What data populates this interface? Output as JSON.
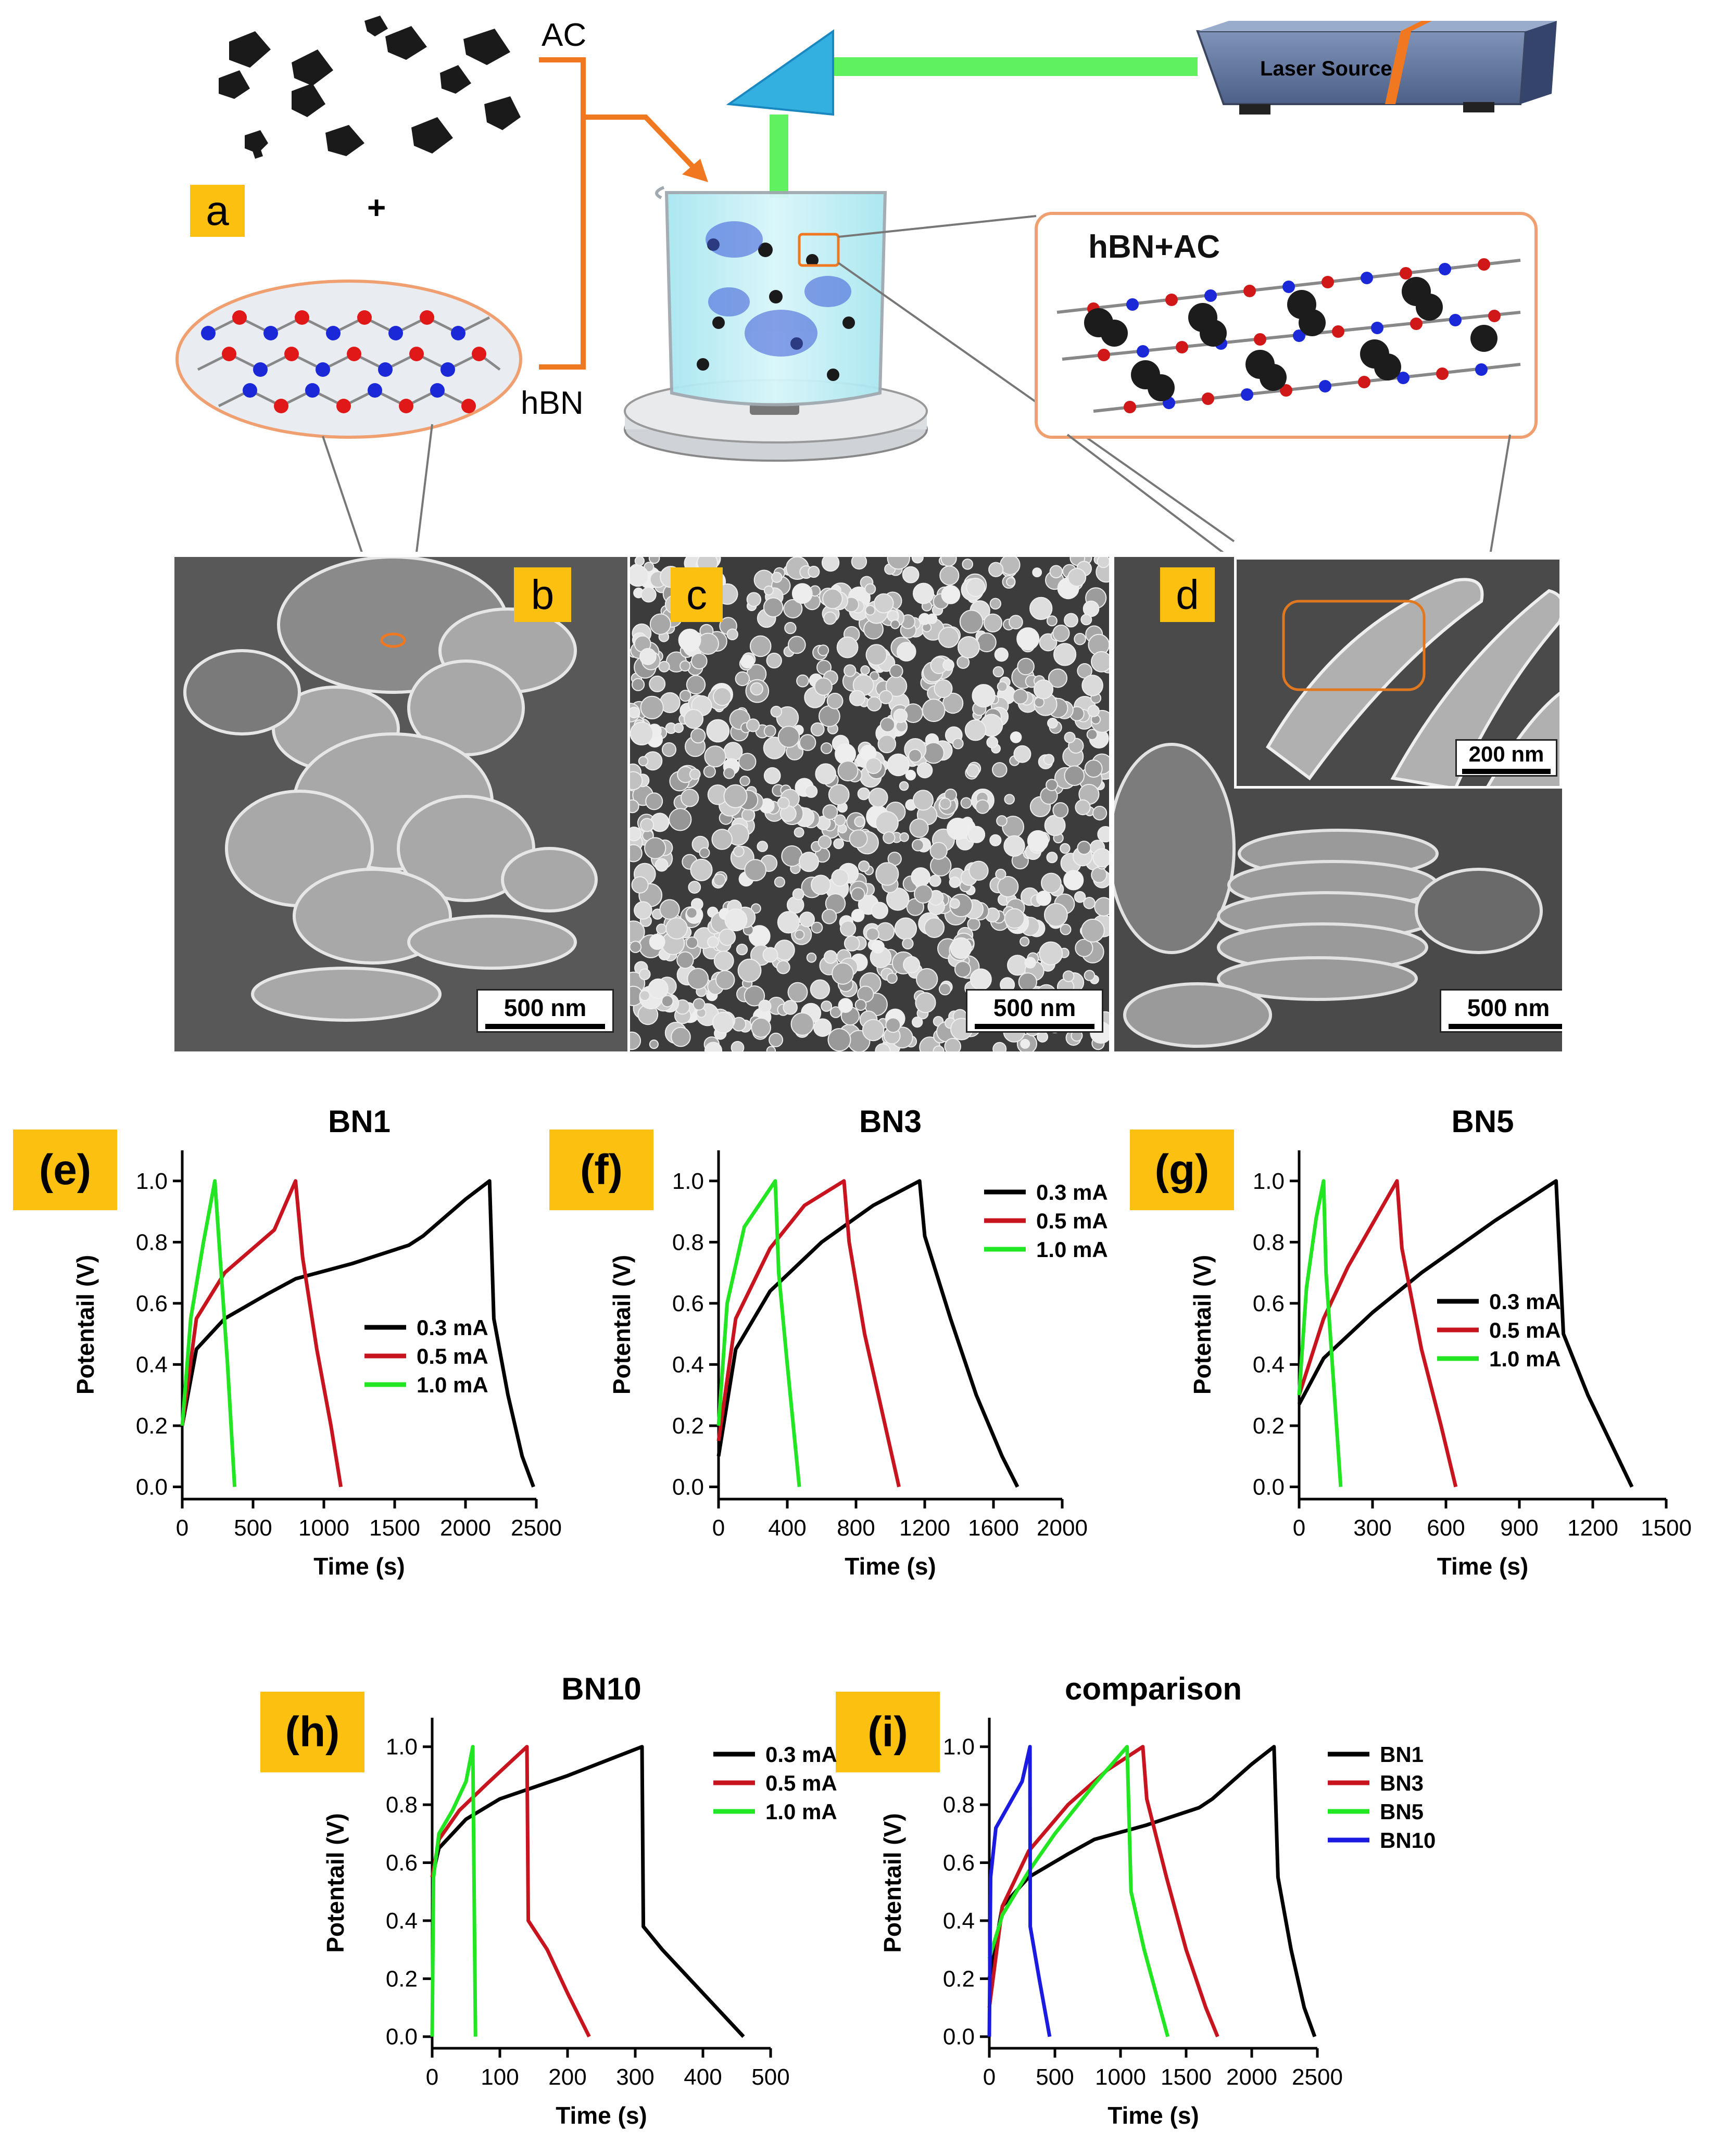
{
  "schematic": {
    "ac_label": "AC",
    "hbn_label": "hBN",
    "plus": "+",
    "panel_label": "a",
    "laser_label": "Laser Source",
    "composite_label": "hBN+AC"
  },
  "sem": {
    "b": {
      "label": "b",
      "scale": "500 nm"
    },
    "c": {
      "label": "c",
      "scale": "500 nm"
    },
    "d": {
      "label": "d",
      "scale": "500 nm",
      "inset_scale": "200 nm"
    }
  },
  "colors": {
    "black": "#000000",
    "red": "#c8141e",
    "green": "#22e622",
    "blue": "#1a1ae0",
    "badge": "#fcc010"
  },
  "chart_data": [
    {
      "id": "e",
      "badge": "(e)",
      "type": "line",
      "title": "BN1",
      "xlabel": "Time (s)",
      "ylabel": "Potentail (V)",
      "xlim": [
        0,
        2500
      ],
      "ylim": [
        0,
        1.0
      ],
      "xticks": [
        0,
        500,
        1000,
        1500,
        2000,
        2500
      ],
      "yticks": [
        0.0,
        0.2,
        0.4,
        0.6,
        0.8,
        1.0
      ],
      "legend": "center-right",
      "series": [
        {
          "name": "0.3 mA",
          "color": "#000000",
          "points": [
            [
              0,
              0.2
            ],
            [
              100,
              0.45
            ],
            [
              300,
              0.55
            ],
            [
              600,
              0.63
            ],
            [
              800,
              0.68
            ],
            [
              1200,
              0.73
            ],
            [
              1600,
              0.79
            ],
            [
              1700,
              0.82
            ],
            [
              2000,
              0.94
            ],
            [
              2170,
              1.0
            ],
            [
              2200,
              0.55
            ],
            [
              2300,
              0.3
            ],
            [
              2400,
              0.1
            ],
            [
              2480,
              0.0
            ]
          ]
        },
        {
          "name": "0.5 mA",
          "color": "#c8141e",
          "points": [
            [
              0,
              0.2
            ],
            [
              100,
              0.55
            ],
            [
              300,
              0.7
            ],
            [
              500,
              0.78
            ],
            [
              650,
              0.84
            ],
            [
              800,
              1.0
            ],
            [
              850,
              0.75
            ],
            [
              950,
              0.45
            ],
            [
              1050,
              0.2
            ],
            [
              1120,
              0.0
            ]
          ]
        },
        {
          "name": "1.0 mA",
          "color": "#22e622",
          "points": [
            [
              0,
              0.2
            ],
            [
              60,
              0.55
            ],
            [
              150,
              0.8
            ],
            [
              230,
              1.0
            ],
            [
              260,
              0.8
            ],
            [
              320,
              0.4
            ],
            [
              370,
              0.0
            ]
          ]
        }
      ]
    },
    {
      "id": "f",
      "badge": "(f)",
      "type": "line",
      "title": "BN3",
      "xlabel": "Time (s)",
      "ylabel": "Potentail (V)",
      "xlim": [
        0,
        2000
      ],
      "ylim": [
        0,
        1.0
      ],
      "xticks": [
        0,
        400,
        800,
        1200,
        1600,
        2000
      ],
      "yticks": [
        0.0,
        0.2,
        0.4,
        0.6,
        0.8,
        1.0
      ],
      "legend": "top-right",
      "series": [
        {
          "name": "0.3 mA",
          "color": "#000000",
          "points": [
            [
              0,
              0.1
            ],
            [
              100,
              0.45
            ],
            [
              300,
              0.64
            ],
            [
              600,
              0.8
            ],
            [
              900,
              0.92
            ],
            [
              1170,
              1.0
            ],
            [
              1200,
              0.82
            ],
            [
              1350,
              0.55
            ],
            [
              1500,
              0.3
            ],
            [
              1650,
              0.1
            ],
            [
              1740,
              0.0
            ]
          ]
        },
        {
          "name": "0.5 mA",
          "color": "#c8141e",
          "points": [
            [
              0,
              0.15
            ],
            [
              100,
              0.55
            ],
            [
              300,
              0.78
            ],
            [
              500,
              0.92
            ],
            [
              730,
              1.0
            ],
            [
              760,
              0.8
            ],
            [
              850,
              0.5
            ],
            [
              950,
              0.25
            ],
            [
              1050,
              0.0
            ]
          ]
        },
        {
          "name": "1.0 mA",
          "color": "#22e622",
          "points": [
            [
              0,
              0.2
            ],
            [
              50,
              0.6
            ],
            [
              150,
              0.85
            ],
            [
              330,
              1.0
            ],
            [
              350,
              0.7
            ],
            [
              400,
              0.4
            ],
            [
              470,
              0.0
            ]
          ]
        }
      ]
    },
    {
      "id": "g",
      "badge": "(g)",
      "type": "line",
      "title": "BN5",
      "xlabel": "Time (s)",
      "ylabel": "Potentail (V)",
      "xlim": [
        0,
        1500
      ],
      "ylim": [
        0,
        1.0
      ],
      "xticks": [
        0,
        300,
        600,
        900,
        1200,
        1500
      ],
      "yticks": [
        0.0,
        0.2,
        0.4,
        0.6,
        0.8,
        1.0
      ],
      "legend": "center-right",
      "series": [
        {
          "name": "0.3 mA",
          "color": "#000000",
          "points": [
            [
              0,
              0.27
            ],
            [
              100,
              0.42
            ],
            [
              300,
              0.57
            ],
            [
              500,
              0.7
            ],
            [
              800,
              0.87
            ],
            [
              1050,
              1.0
            ],
            [
              1080,
              0.5
            ],
            [
              1180,
              0.3
            ],
            [
              1300,
              0.1
            ],
            [
              1360,
              0.0
            ]
          ]
        },
        {
          "name": "0.5 mA",
          "color": "#c8141e",
          "points": [
            [
              0,
              0.3
            ],
            [
              100,
              0.55
            ],
            [
              200,
              0.72
            ],
            [
              300,
              0.86
            ],
            [
              400,
              1.0
            ],
            [
              420,
              0.78
            ],
            [
              500,
              0.45
            ],
            [
              580,
              0.2
            ],
            [
              640,
              0.0
            ]
          ]
        },
        {
          "name": "1.0 mA",
          "color": "#22e622",
          "points": [
            [
              0,
              0.3
            ],
            [
              30,
              0.65
            ],
            [
              70,
              0.88
            ],
            [
              100,
              1.0
            ],
            [
              110,
              0.7
            ],
            [
              140,
              0.35
            ],
            [
              170,
              0.0
            ]
          ]
        }
      ]
    },
    {
      "id": "h",
      "badge": "(h)",
      "type": "line",
      "title": "BN10",
      "xlabel": "Time (s)",
      "ylabel": "Potentail (V)",
      "xlim": [
        0,
        500
      ],
      "ylim": [
        0,
        1.0
      ],
      "xticks": [
        0,
        100,
        200,
        300,
        400,
        500
      ],
      "yticks": [
        0.0,
        0.2,
        0.4,
        0.6,
        0.8,
        1.0
      ],
      "legend": "top-right",
      "series": [
        {
          "name": "0.3 mA",
          "color": "#000000",
          "points": [
            [
              0,
              0.55
            ],
            [
              10,
              0.65
            ],
            [
              50,
              0.75
            ],
            [
              100,
              0.82
            ],
            [
              200,
              0.9
            ],
            [
              310,
              1.0
            ],
            [
              312,
              0.38
            ],
            [
              340,
              0.3
            ],
            [
              380,
              0.2
            ],
            [
              420,
              0.1
            ],
            [
              460,
              0.0
            ]
          ]
        },
        {
          "name": "0.5 mA",
          "color": "#c8141e",
          "points": [
            [
              0,
              0.55
            ],
            [
              10,
              0.68
            ],
            [
              40,
              0.78
            ],
            [
              80,
              0.87
            ],
            [
              140,
              1.0
            ],
            [
              142,
              0.4
            ],
            [
              170,
              0.3
            ],
            [
              200,
              0.15
            ],
            [
              232,
              0.0
            ]
          ]
        },
        {
          "name": "1.0 mA",
          "color": "#22e622",
          "points": [
            [
              0,
              0.0
            ],
            [
              2,
              0.55
            ],
            [
              10,
              0.7
            ],
            [
              30,
              0.78
            ],
            [
              50,
              0.88
            ],
            [
              60,
              1.0
            ],
            [
              62,
              0.5
            ],
            [
              64,
              0.0
            ]
          ]
        }
      ]
    },
    {
      "id": "i",
      "badge": "(i)",
      "type": "line",
      "title": "comparison",
      "xlabel": "Time (s)",
      "ylabel": "Potentail (V)",
      "xlim": [
        0,
        2500
      ],
      "ylim": [
        0,
        1.0
      ],
      "xticks": [
        0,
        500,
        1000,
        1500,
        2000,
        2500
      ],
      "yticks": [
        0.0,
        0.2,
        0.4,
        0.6,
        0.8,
        1.0
      ],
      "legend": "top-right",
      "series": [
        {
          "name": "BN1",
          "color": "#000000",
          "points": [
            [
              0,
              0.2
            ],
            [
              100,
              0.45
            ],
            [
              300,
              0.55
            ],
            [
              600,
              0.63
            ],
            [
              800,
              0.68
            ],
            [
              1200,
              0.73
            ],
            [
              1600,
              0.79
            ],
            [
              1700,
              0.82
            ],
            [
              2000,
              0.94
            ],
            [
              2170,
              1.0
            ],
            [
              2200,
              0.55
            ],
            [
              2300,
              0.3
            ],
            [
              2400,
              0.1
            ],
            [
              2480,
              0.0
            ]
          ]
        },
        {
          "name": "BN3",
          "color": "#c8141e",
          "points": [
            [
              0,
              0.1
            ],
            [
              100,
              0.45
            ],
            [
              300,
              0.64
            ],
            [
              600,
              0.8
            ],
            [
              900,
              0.92
            ],
            [
              1170,
              1.0
            ],
            [
              1200,
              0.82
            ],
            [
              1350,
              0.55
            ],
            [
              1500,
              0.3
            ],
            [
              1650,
              0.1
            ],
            [
              1740,
              0.0
            ]
          ]
        },
        {
          "name": "BN5",
          "color": "#22e622",
          "points": [
            [
              0,
              0.27
            ],
            [
              100,
              0.42
            ],
            [
              300,
              0.57
            ],
            [
              500,
              0.7
            ],
            [
              800,
              0.87
            ],
            [
              1050,
              1.0
            ],
            [
              1080,
              0.5
            ],
            [
              1180,
              0.3
            ],
            [
              1300,
              0.1
            ],
            [
              1360,
              0.0
            ]
          ]
        },
        {
          "name": "BN10",
          "color": "#1a1ae0",
          "points": [
            [
              0,
              0.0
            ],
            [
              10,
              0.55
            ],
            [
              50,
              0.72
            ],
            [
              150,
              0.8
            ],
            [
              250,
              0.88
            ],
            [
              310,
              1.0
            ],
            [
              312,
              0.38
            ],
            [
              380,
              0.2
            ],
            [
              460,
              0.0
            ]
          ]
        }
      ]
    }
  ]
}
